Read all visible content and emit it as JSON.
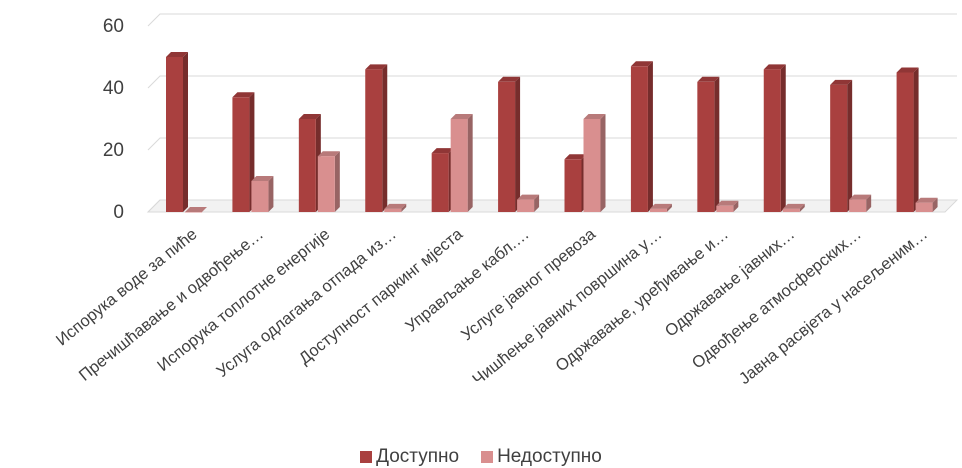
{
  "chart_data": {
    "type": "bar",
    "categories": [
      "Испорука воде за пиће",
      "Пречишћавање и одвођење…",
      "Испорука топлотне енергије",
      "Услуга одлагања отпада из…",
      "Доступност паркинг мјеста",
      "Управљање кабл.…",
      "Услуге јавног превоза",
      "Чишћење јавних површина у…",
      "Одржавање, уређивање и…",
      "Одржавање јавних…",
      "Одвођење атмосферских…",
      "Јавна расвјета у насељеним…"
    ],
    "series": [
      {
        "name": "Доступно",
        "values": [
          50,
          37,
          30,
          46,
          19,
          42,
          17,
          47,
          42,
          46,
          41,
          45
        ]
      },
      {
        "name": "Недоступно",
        "values": [
          0,
          10,
          18,
          1,
          30,
          4,
          30,
          1,
          2,
          1,
          4,
          3
        ]
      }
    ],
    "ylim": [
      0,
      60
    ],
    "yticks": [
      "0",
      "20",
      "40",
      "60"
    ],
    "grid": true,
    "legend_position": "bottom",
    "colors": {
      "Доступно": "#a9403f",
      "Недоступно": "#d98f8f"
    }
  }
}
